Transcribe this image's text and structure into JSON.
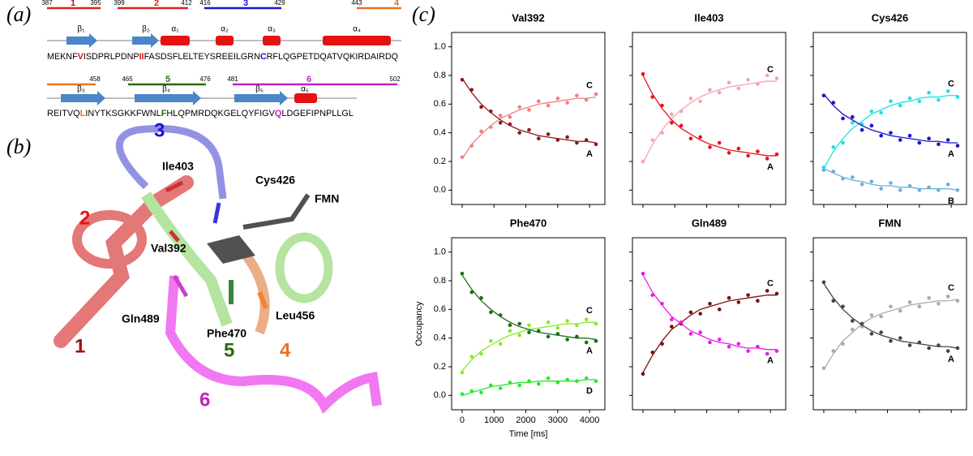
{
  "panel_a": {
    "label": "(a)",
    "row1": {
      "numbers": [
        "387",
        "395",
        "399",
        "412",
        "416",
        "429",
        "443"
      ],
      "segments": [
        "1",
        "2",
        "3",
        "4"
      ],
      "structures": [
        "β₁",
        "β₂",
        "α₁",
        "α₂",
        "α₃",
        "α₄"
      ],
      "sequence": [
        "MEKNF",
        "V",
        "ISDPRLPDNP",
        "II",
        "FASDSFLELTEYSREEILGRN",
        "C",
        "RFLQGPETDQATVQKIRDAIRDQ"
      ]
    },
    "row2": {
      "numbers": [
        "458",
        "465",
        "476",
        "481",
        "502"
      ],
      "segments": [
        "5",
        "6"
      ],
      "structures": [
        "β₃",
        "β₄",
        "β₅",
        "α₅"
      ],
      "sequence": [
        "REITVQ",
        "L",
        "INYTKSGKKFWNL",
        "F",
        "HLQPMRDQKGELQYFIGV",
        "Q",
        "LDGEFIPNPLLGL"
      ]
    }
  },
  "panel_b": {
    "label": "(b)",
    "residues": [
      "Ile403",
      "Cys426",
      "FMN",
      "Val392",
      "Gln489",
      "Phe470",
      "Leu456"
    ],
    "segments": [
      "1",
      "2",
      "3",
      "4",
      "5",
      "6"
    ]
  },
  "panel_c": {
    "label": "(c)"
  },
  "chart_data": [
    {
      "type": "scatter",
      "title": "Val392",
      "x": [
        0,
        300,
        600,
        900,
        1200,
        1500,
        1800,
        2100,
        2400,
        2700,
        3000,
        3300,
        3600,
        3900,
        4200
      ],
      "xlim": [
        -330,
        4480
      ],
      "ylim": [
        -0.1,
        1.1
      ],
      "xticks": [
        0,
        1000,
        2000,
        3000,
        4000
      ],
      "yticks": [
        {
          "value": 0,
          "label": "0.0"
        },
        0.2,
        0.4,
        0.6,
        0.8,
        {
          "value": 1,
          "label": "1.0"
        }
      ],
      "show_xtick_labels": false,
      "show_ytick_labels": true,
      "series": [
        {
          "name": "C",
          "color": "#f08080",
          "values": [
            0.23,
            0.31,
            0.41,
            0.44,
            0.52,
            0.51,
            0.58,
            0.56,
            0.62,
            0.59,
            0.64,
            0.61,
            0.66,
            0.63,
            0.67
          ],
          "fit": [
            0.22,
            0.32,
            0.39,
            0.45,
            0.5,
            0.53,
            0.56,
            0.58,
            0.6,
            0.61,
            0.62,
            0.63,
            0.64,
            0.64,
            0.65
          ]
        },
        {
          "name": "A",
          "color": "#8b1a1a",
          "values": [
            0.77,
            0.7,
            0.58,
            0.55,
            0.47,
            0.46,
            0.4,
            0.42,
            0.36,
            0.39,
            0.35,
            0.37,
            0.33,
            0.35,
            0.32
          ],
          "fit": [
            0.78,
            0.68,
            0.6,
            0.54,
            0.49,
            0.45,
            0.42,
            0.4,
            0.38,
            0.37,
            0.36,
            0.35,
            0.34,
            0.34,
            0.33
          ]
        }
      ]
    },
    {
      "type": "scatter",
      "title": "Ile403",
      "x": [
        0,
        300,
        600,
        900,
        1200,
        1500,
        1800,
        2100,
        2400,
        2700,
        3000,
        3300,
        3600,
        3900,
        4200
      ],
      "xlim": [
        -330,
        4480
      ],
      "ylim": [
        -0.1,
        1.1
      ],
      "xticks": [
        0,
        1000,
        2000,
        3000,
        4000
      ],
      "yticks": [
        {
          "value": 0,
          "label": "0.0"
        },
        0.2,
        0.4,
        0.6,
        0.8,
        {
          "value": 1,
          "label": "1.0"
        }
      ],
      "show_xtick_labels": false,
      "show_ytick_labels": false,
      "series": [
        {
          "name": "C",
          "color": "#f4a4b0",
          "values": [
            0.2,
            0.35,
            0.4,
            0.53,
            0.55,
            0.64,
            0.62,
            0.7,
            0.68,
            0.75,
            0.71,
            0.77,
            0.74,
            0.8,
            0.78
          ],
          "fit": [
            0.19,
            0.32,
            0.42,
            0.5,
            0.56,
            0.61,
            0.65,
            0.68,
            0.7,
            0.72,
            0.73,
            0.74,
            0.75,
            0.76,
            0.76
          ]
        },
        {
          "name": "A",
          "color": "#e8121a",
          "values": [
            0.81,
            0.65,
            0.59,
            0.47,
            0.45,
            0.36,
            0.37,
            0.3,
            0.33,
            0.26,
            0.29,
            0.24,
            0.27,
            0.22,
            0.25
          ],
          "fit": [
            0.8,
            0.67,
            0.57,
            0.49,
            0.43,
            0.39,
            0.35,
            0.32,
            0.3,
            0.28,
            0.27,
            0.26,
            0.25,
            0.24,
            0.24
          ]
        }
      ]
    },
    {
      "type": "scatter",
      "title": "Cys426",
      "x": [
        0,
        300,
        600,
        900,
        1200,
        1500,
        1800,
        2100,
        2400,
        2700,
        3000,
        3300,
        3600,
        3900,
        4200
      ],
      "xlim": [
        -330,
        4480
      ],
      "ylim": [
        -0.1,
        1.1
      ],
      "xticks": [
        0,
        1000,
        2000,
        3000,
        4000
      ],
      "yticks": [
        {
          "value": 0,
          "label": "0.0"
        },
        0.2,
        0.4,
        0.6,
        0.8,
        {
          "value": 1,
          "label": "1.0"
        }
      ],
      "show_xtick_labels": false,
      "show_ytick_labels": false,
      "series": [
        {
          "name": "C",
          "color": "#1fe0e0",
          "values": [
            0.16,
            0.3,
            0.33,
            0.47,
            0.46,
            0.55,
            0.54,
            0.62,
            0.59,
            0.64,
            0.62,
            0.68,
            0.63,
            0.69,
            0.65
          ],
          "fit": [
            0.15,
            0.27,
            0.36,
            0.43,
            0.48,
            0.53,
            0.56,
            0.59,
            0.61,
            0.62,
            0.64,
            0.65,
            0.65,
            0.66,
            0.66
          ]
        },
        {
          "name": "A",
          "color": "#1a14c8",
          "values": [
            0.66,
            0.61,
            0.5,
            0.51,
            0.42,
            0.45,
            0.38,
            0.4,
            0.35,
            0.38,
            0.33,
            0.36,
            0.32,
            0.35,
            0.31
          ],
          "fit": [
            0.67,
            0.59,
            0.53,
            0.49,
            0.45,
            0.42,
            0.4,
            0.38,
            0.37,
            0.36,
            0.35,
            0.34,
            0.34,
            0.33,
            0.33
          ]
        },
        {
          "name": "B",
          "color": "#6ab0d8",
          "values": [
            0.14,
            0.13,
            0.08,
            0.09,
            0.04,
            0.06,
            0.01,
            0.05,
            0,
            0.03,
            0,
            0.02,
            0,
            0.04,
            0
          ],
          "fit": [
            0.15,
            0.12,
            0.09,
            0.07,
            0.06,
            0.04,
            0.03,
            0.03,
            0.02,
            0.02,
            0.01,
            0.01,
            0.01,
            0.01,
            0
          ]
        }
      ]
    },
    {
      "type": "scatter",
      "title": "Phe470",
      "x": [
        0,
        300,
        600,
        900,
        1200,
        1500,
        1800,
        2100,
        2400,
        2700,
        3000,
        3300,
        3600,
        3900,
        4200
      ],
      "xlim": [
        -330,
        4480
      ],
      "ylim": [
        -0.1,
        1.1
      ],
      "xticks": [
        0,
        1000,
        2000,
        3000,
        4000
      ],
      "yticks": [
        {
          "value": 0,
          "label": "0.0"
        },
        0.2,
        0.4,
        0.6,
        0.8,
        {
          "value": 1,
          "label": "1.0"
        }
      ],
      "show_xtick_labels": true,
      "show_ytick_labels": true,
      "xlabel": "Time [ms]",
      "ylabel": "Occupancy",
      "series": [
        {
          "name": "C",
          "color": "#8ae82a",
          "values": [
            0.16,
            0.27,
            0.29,
            0.38,
            0.36,
            0.45,
            0.42,
            0.49,
            0.45,
            0.51,
            0.47,
            0.52,
            0.49,
            0.53,
            0.5
          ],
          "fit": [
            0.17,
            0.25,
            0.31,
            0.35,
            0.39,
            0.42,
            0.44,
            0.46,
            0.47,
            0.48,
            0.49,
            0.5,
            0.5,
            0.51,
            0.51
          ]
        },
        {
          "name": "A",
          "color": "#1a6e1a",
          "values": [
            0.85,
            0.72,
            0.68,
            0.58,
            0.56,
            0.49,
            0.5,
            0.44,
            0.45,
            0.41,
            0.43,
            0.39,
            0.41,
            0.37,
            0.38
          ],
          "fit": [
            0.84,
            0.74,
            0.66,
            0.6,
            0.55,
            0.51,
            0.48,
            0.46,
            0.44,
            0.43,
            0.42,
            0.41,
            0.4,
            0.4,
            0.39
          ]
        },
        {
          "name": "D",
          "color": "#2ae82a",
          "values": [
            0.01,
            0.03,
            0.02,
            0.07,
            0.05,
            0.09,
            0.07,
            0.1,
            0.08,
            0.12,
            0.09,
            0.11,
            0.1,
            0.12,
            0.1
          ],
          "fit": [
            0,
            0.02,
            0.04,
            0.06,
            0.07,
            0.08,
            0.09,
            0.09,
            0.1,
            0.1,
            0.1,
            0.1,
            0.1,
            0.11,
            0.11
          ]
        }
      ]
    },
    {
      "type": "scatter",
      "title": "Gln489",
      "x": [
        0,
        300,
        600,
        900,
        1200,
        1500,
        1800,
        2100,
        2400,
        2700,
        3000,
        3300,
        3600,
        3900,
        4200
      ],
      "xlim": [
        -330,
        4480
      ],
      "ylim": [
        -0.1,
        1.1
      ],
      "xticks": [
        0,
        1000,
        2000,
        3000,
        4000
      ],
      "yticks": [
        {
          "value": 0,
          "label": "0.0"
        },
        0.2,
        0.4,
        0.6,
        0.8,
        {
          "value": 1,
          "label": "1.0"
        }
      ],
      "show_xtick_labels": false,
      "show_ytick_labels": false,
      "series": [
        {
          "name": "C",
          "color": "#7a1010",
          "values": [
            0.15,
            0.3,
            0.36,
            0.48,
            0.5,
            0.58,
            0.57,
            0.64,
            0.6,
            0.68,
            0.65,
            0.7,
            0.66,
            0.73,
            0.71
          ],
          "fit": [
            0.16,
            0.28,
            0.38,
            0.46,
            0.51,
            0.56,
            0.6,
            0.62,
            0.64,
            0.66,
            0.67,
            0.68,
            0.69,
            0.7,
            0.7
          ]
        },
        {
          "name": "A",
          "color": "#e81ae8",
          "values": [
            0.85,
            0.7,
            0.64,
            0.53,
            0.51,
            0.43,
            0.44,
            0.37,
            0.39,
            0.34,
            0.36,
            0.31,
            0.34,
            0.29,
            0.31
          ],
          "fit": [
            0.84,
            0.72,
            0.63,
            0.55,
            0.5,
            0.45,
            0.42,
            0.39,
            0.37,
            0.36,
            0.34,
            0.33,
            0.33,
            0.32,
            0.32
          ]
        }
      ]
    },
    {
      "type": "scatter",
      "title": "FMN",
      "x": [
        0,
        300,
        600,
        900,
        1200,
        1500,
        1800,
        2100,
        2400,
        2700,
        3000,
        3300,
        3600,
        3900,
        4200
      ],
      "xlim": [
        -330,
        4480
      ],
      "ylim": [
        -0.1,
        1.1
      ],
      "xticks": [
        0,
        1000,
        2000,
        3000,
        4000
      ],
      "yticks": [
        {
          "value": 0,
          "label": "0.0"
        },
        0.2,
        0.4,
        0.6,
        0.8,
        {
          "value": 1,
          "label": "1.0"
        }
      ],
      "show_xtick_labels": false,
      "show_ytick_labels": false,
      "series": [
        {
          "name": "C",
          "color": "#aaaaaa",
          "values": [
            0.19,
            0.31,
            0.36,
            0.46,
            0.48,
            0.56,
            0.55,
            0.62,
            0.59,
            0.65,
            0.62,
            0.68,
            0.64,
            0.69,
            0.66
          ],
          "fit": [
            0.18,
            0.29,
            0.38,
            0.44,
            0.5,
            0.54,
            0.57,
            0.59,
            0.61,
            0.63,
            0.64,
            0.65,
            0.66,
            0.66,
            0.67
          ]
        },
        {
          "name": "A",
          "color": "#444444",
          "values": [
            0.79,
            0.66,
            0.62,
            0.52,
            0.5,
            0.43,
            0.44,
            0.38,
            0.4,
            0.35,
            0.37,
            0.33,
            0.35,
            0.31,
            0.33
          ],
          "fit": [
            0.78,
            0.68,
            0.6,
            0.54,
            0.49,
            0.45,
            0.42,
            0.4,
            0.38,
            0.37,
            0.36,
            0.35,
            0.34,
            0.34,
            0.33
          ]
        }
      ]
    }
  ]
}
